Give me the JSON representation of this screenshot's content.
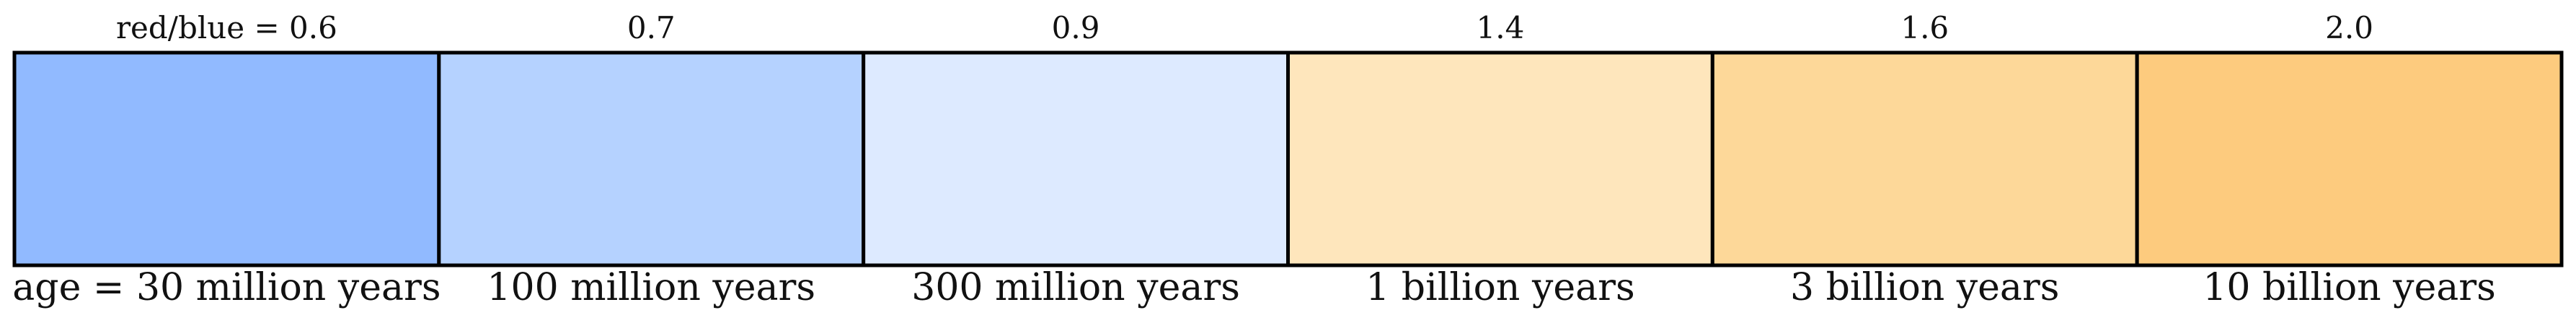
{
  "swatches": [
    {
      "ratio_label": "red/blue = 0.6",
      "age_label": "age = 30 million years",
      "color": "#91baff"
    },
    {
      "ratio_label": "0.7",
      "age_label": "100 million years",
      "color": "#b5d2ff"
    },
    {
      "ratio_label": "0.9",
      "age_label": "300 million years",
      "color": "#ddeaff"
    },
    {
      "ratio_label": "1.4",
      "age_label": "1 billion years",
      "color": "#fee6bc"
    },
    {
      "ratio_label": "1.6",
      "age_label": "3 billion years",
      "color": "#fdd899"
    },
    {
      "ratio_label": "2.0",
      "age_label": "10 billion years",
      "color": "#fdcb7e"
    }
  ]
}
